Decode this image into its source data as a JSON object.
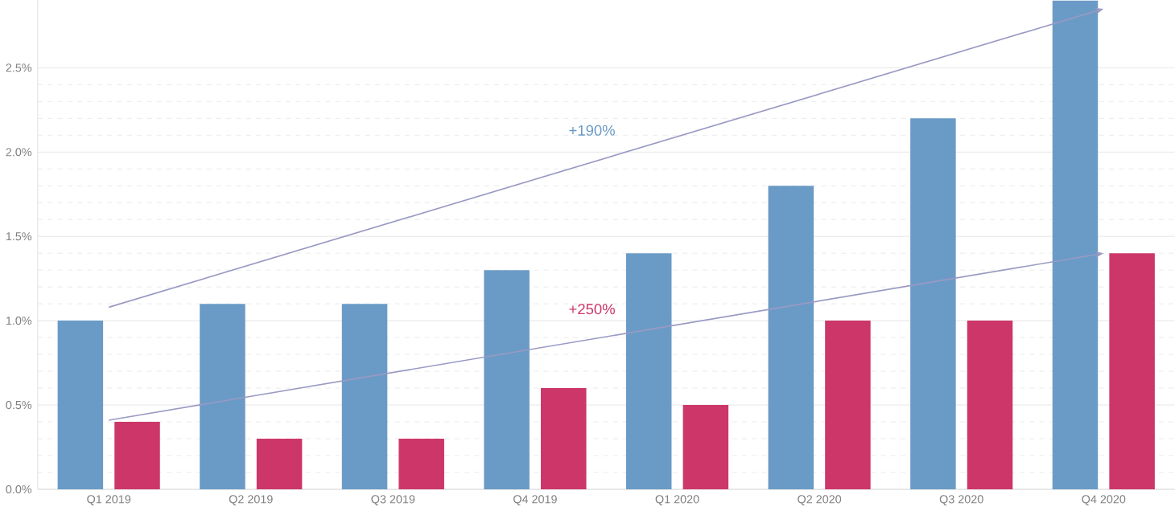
{
  "chart_data": {
    "type": "bar",
    "categories": [
      "Q1 2019",
      "Q2 2019",
      "Q3 2019",
      "Q4 2019",
      "Q1 2020",
      "Q2 2020",
      "Q3 2020",
      "Q4 2020"
    ],
    "series": [
      {
        "color": "#6a9bc6",
        "values": [
          1.0,
          1.1,
          1.1,
          1.3,
          1.4,
          1.8,
          2.2,
          2.9
        ]
      },
      {
        "color": "#cc3669",
        "values": [
          0.4,
          0.3,
          0.3,
          0.6,
          0.5,
          1.0,
          1.0,
          1.4
        ]
      },
      {
        "type": "line",
        "color": "#9a9ac4",
        "x": [
          "Q1 2019",
          "Q4 2020"
        ],
        "values": [
          1.08,
          2.85
        ]
      },
      {
        "type": "line",
        "color": "#9a9ac4",
        "x": [
          "Q1 2019",
          "Q4 2020"
        ],
        "values": [
          0.41,
          1.4
        ]
      }
    ],
    "ylim": [
      0,
      2.9
    ],
    "yticks": [
      {
        "value": 0,
        "label": "0.0%"
      },
      {
        "value": 0.5,
        "label": "0.5%"
      },
      {
        "value": 1.0,
        "label": "1.0%"
      },
      {
        "value": 1.5,
        "label": "1.5%"
      },
      {
        "value": 2.0,
        "label": "2.0%"
      },
      {
        "value": 2.5,
        "label": "2.5%"
      }
    ],
    "grid": "y",
    "annotations": [
      "+190%",
      "+250%"
    ]
  }
}
